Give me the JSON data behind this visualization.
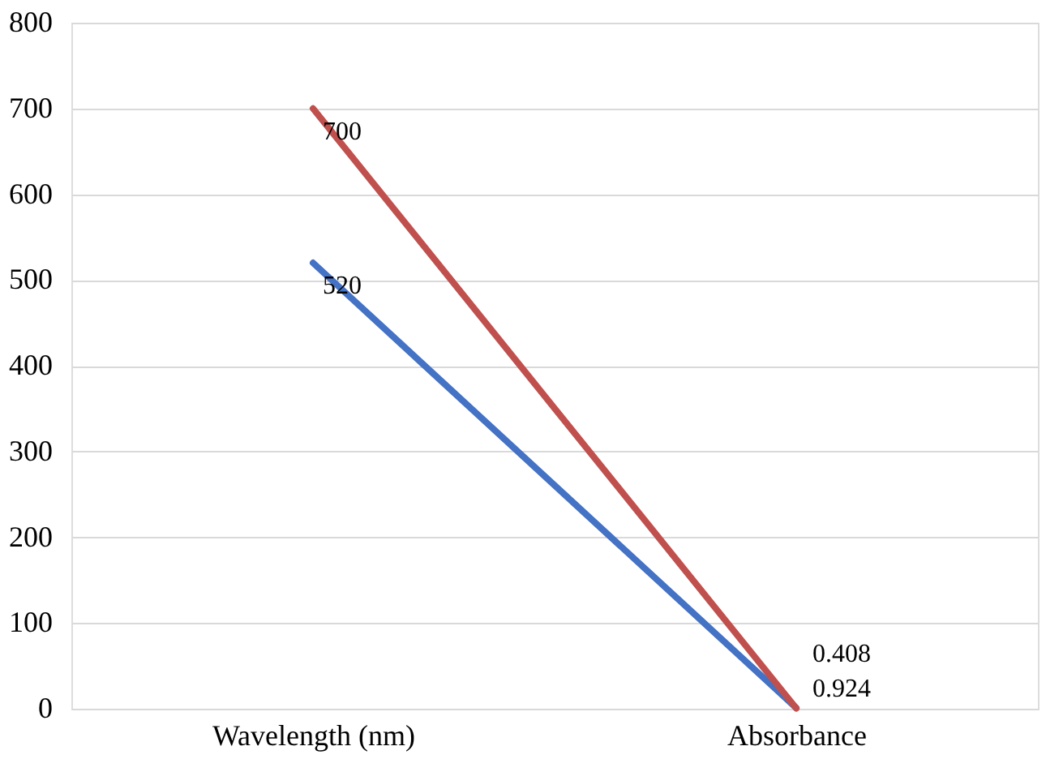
{
  "chart_data": {
    "type": "line",
    "categories": [
      "Wavelength (nm)",
      "Absorbance"
    ],
    "series": [
      {
        "color": "#4472c4",
        "values": [
          520,
          0.924
        ]
      },
      {
        "color": "#c0504d",
        "values": [
          700,
          0.408
        ]
      }
    ],
    "ylim": [
      0,
      800
    ],
    "yticks": [
      0,
      100,
      200,
      300,
      400,
      500,
      600,
      700,
      800
    ],
    "grid": "y",
    "data_labels": true,
    "legend": false,
    "marker": "none",
    "line_style": "solid"
  }
}
